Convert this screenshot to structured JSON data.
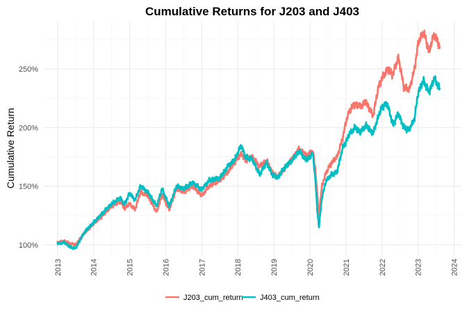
{
  "chart_data": {
    "type": "line",
    "title": "Cumulative Returns for J203 and J403",
    "xlabel": "",
    "ylabel": "Cumulative Return",
    "xlim": [
      2012.6,
      2024.2
    ],
    "ylim": [
      0.91,
      2.91
    ],
    "grid": true,
    "legend_position": "bottom",
    "x_ticks": [
      2013,
      2014,
      2015,
      2016,
      2017,
      2018,
      2019,
      2020,
      2021,
      2022,
      2023,
      2024
    ],
    "x_tick_labels": [
      "2013",
      "2014",
      "2015",
      "2016",
      "2017",
      "2018",
      "2019",
      "2020",
      "2021",
      "2022",
      "2023",
      "2024"
    ],
    "y_ticks": [
      1.0,
      1.5,
      2.0,
      2.5
    ],
    "y_tick_labels": [
      "100%",
      "150%",
      "200%",
      "250%"
    ],
    "series": [
      {
        "name": "J203_cum_return",
        "color": "#F8766D",
        "x": [
          2013.0,
          2013.2,
          2013.35,
          2013.5,
          2013.75,
          2014.0,
          2014.25,
          2014.5,
          2014.75,
          2014.85,
          2015.0,
          2015.15,
          2015.3,
          2015.5,
          2015.75,
          2015.9,
          2016.0,
          2016.1,
          2016.3,
          2016.5,
          2016.75,
          2017.0,
          2017.2,
          2017.5,
          2017.75,
          2017.9,
          2018.1,
          2018.2,
          2018.4,
          2018.6,
          2018.8,
          2018.95,
          2019.1,
          2019.3,
          2019.5,
          2019.7,
          2019.9,
          2020.08,
          2020.15,
          2020.2,
          2020.25,
          2020.33,
          2020.45,
          2020.6,
          2020.75,
          2020.9,
          2021.0,
          2021.1,
          2021.25,
          2021.4,
          2021.55,
          2021.75,
          2021.9,
          2022.0,
          2022.15,
          2022.3,
          2022.45,
          2022.6,
          2022.75,
          2022.9,
          2023.0,
          2023.15,
          2023.3,
          2023.45,
          2023.6
        ],
        "values": [
          1.02,
          1.03,
          1.01,
          1.0,
          1.1,
          1.18,
          1.25,
          1.33,
          1.37,
          1.31,
          1.35,
          1.3,
          1.45,
          1.42,
          1.28,
          1.43,
          1.36,
          1.3,
          1.48,
          1.45,
          1.5,
          1.42,
          1.5,
          1.55,
          1.63,
          1.7,
          1.78,
          1.72,
          1.75,
          1.67,
          1.72,
          1.62,
          1.58,
          1.65,
          1.73,
          1.82,
          1.76,
          1.8,
          1.65,
          1.45,
          1.25,
          1.5,
          1.62,
          1.7,
          1.75,
          1.9,
          2.05,
          2.15,
          2.2,
          2.18,
          2.22,
          2.1,
          2.35,
          2.42,
          2.5,
          2.45,
          2.6,
          2.35,
          2.32,
          2.5,
          2.72,
          2.82,
          2.65,
          2.8,
          2.68
        ]
      },
      {
        "name": "J403_cum_return",
        "color": "#00BFC4",
        "x": [
          2013.0,
          2013.2,
          2013.35,
          2013.5,
          2013.75,
          2014.0,
          2014.25,
          2014.5,
          2014.75,
          2014.85,
          2015.0,
          2015.15,
          2015.3,
          2015.5,
          2015.75,
          2015.9,
          2016.0,
          2016.1,
          2016.3,
          2016.5,
          2016.75,
          2017.0,
          2017.2,
          2017.5,
          2017.75,
          2017.9,
          2018.1,
          2018.2,
          2018.4,
          2018.6,
          2018.8,
          2018.95,
          2019.1,
          2019.3,
          2019.5,
          2019.7,
          2019.9,
          2020.08,
          2020.15,
          2020.2,
          2020.25,
          2020.33,
          2020.45,
          2020.6,
          2020.75,
          2020.9,
          2021.0,
          2021.1,
          2021.25,
          2021.4,
          2021.55,
          2021.75,
          2021.9,
          2022.0,
          2022.15,
          2022.3,
          2022.45,
          2022.6,
          2022.75,
          2022.9,
          2023.0,
          2023.15,
          2023.3,
          2023.45,
          2023.6
        ],
        "values": [
          1.01,
          1.02,
          0.98,
          0.97,
          1.11,
          1.19,
          1.27,
          1.35,
          1.4,
          1.34,
          1.44,
          1.38,
          1.5,
          1.45,
          1.33,
          1.48,
          1.4,
          1.33,
          1.5,
          1.48,
          1.53,
          1.47,
          1.55,
          1.57,
          1.68,
          1.72,
          1.85,
          1.75,
          1.73,
          1.6,
          1.7,
          1.6,
          1.57,
          1.66,
          1.72,
          1.8,
          1.72,
          1.78,
          1.55,
          1.3,
          1.15,
          1.4,
          1.55,
          1.6,
          1.62,
          1.82,
          1.88,
          1.95,
          2.0,
          1.96,
          2.02,
          1.95,
          2.1,
          2.18,
          2.2,
          2.02,
          2.12,
          2.0,
          1.98,
          2.08,
          2.3,
          2.4,
          2.3,
          2.42,
          2.33
        ]
      }
    ]
  }
}
